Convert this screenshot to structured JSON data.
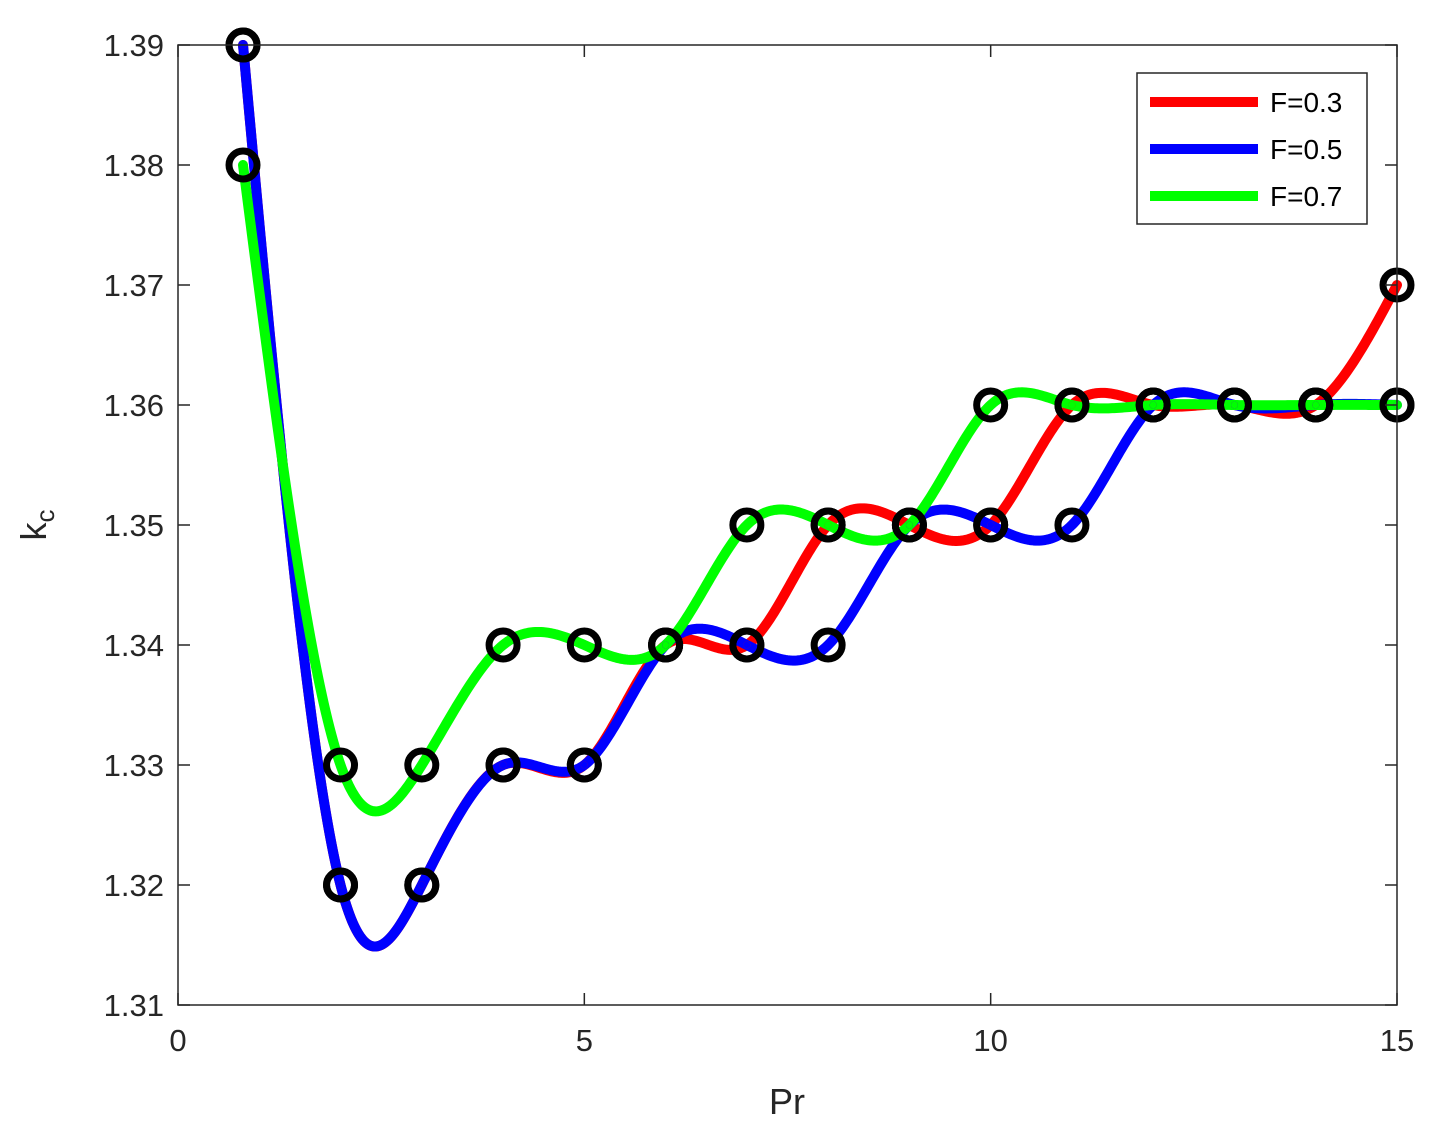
{
  "chart_data": {
    "type": "line",
    "xlabel": "Pr",
    "ylabel": {
      "main": "k",
      "sub": "c"
    },
    "xlim": [
      0,
      15
    ],
    "ylim": [
      1.31,
      1.39
    ],
    "xticks": [
      0,
      5,
      10,
      15
    ],
    "xtick_labels": [
      "0",
      "5",
      "10",
      "15"
    ],
    "yticks": [
      1.31,
      1.32,
      1.33,
      1.34,
      1.35,
      1.36,
      1.37,
      1.38,
      1.39
    ],
    "ytick_labels": [
      "1.31",
      "1.32",
      "1.33",
      "1.34",
      "1.35",
      "1.36",
      "1.37",
      "1.38",
      "1.39"
    ],
    "grid": false,
    "legend_position": "top-right",
    "marker": "circle",
    "marker_color": "#000000",
    "series": [
      {
        "name": "F=0.3",
        "color": "#ff0000",
        "x": [
          0.8,
          2,
          3,
          4,
          5,
          6,
          7,
          8,
          9,
          10,
          11,
          12,
          13,
          14,
          15
        ],
        "y": [
          1.39,
          1.32,
          1.32,
          1.33,
          1.33,
          1.34,
          1.34,
          1.35,
          1.35,
          1.35,
          1.36,
          1.36,
          1.36,
          1.36,
          1.37
        ]
      },
      {
        "name": "F=0.5",
        "color": "#0000ff",
        "x": [
          0.8,
          2,
          3,
          4,
          5,
          6,
          7,
          8,
          9,
          10,
          11,
          12,
          13,
          14,
          15
        ],
        "y": [
          1.39,
          1.32,
          1.32,
          1.33,
          1.33,
          1.34,
          1.34,
          1.34,
          1.35,
          1.35,
          1.35,
          1.36,
          1.36,
          1.36,
          1.36
        ]
      },
      {
        "name": "F=0.7",
        "color": "#00ff00",
        "x": [
          0.8,
          2,
          3,
          4,
          5,
          6,
          7,
          8,
          9,
          10,
          11,
          12,
          13,
          14,
          15
        ],
        "y": [
          1.38,
          1.33,
          1.33,
          1.34,
          1.34,
          1.34,
          1.35,
          1.35,
          1.35,
          1.36,
          1.36,
          1.36,
          1.36,
          1.36,
          1.36
        ]
      }
    ]
  }
}
